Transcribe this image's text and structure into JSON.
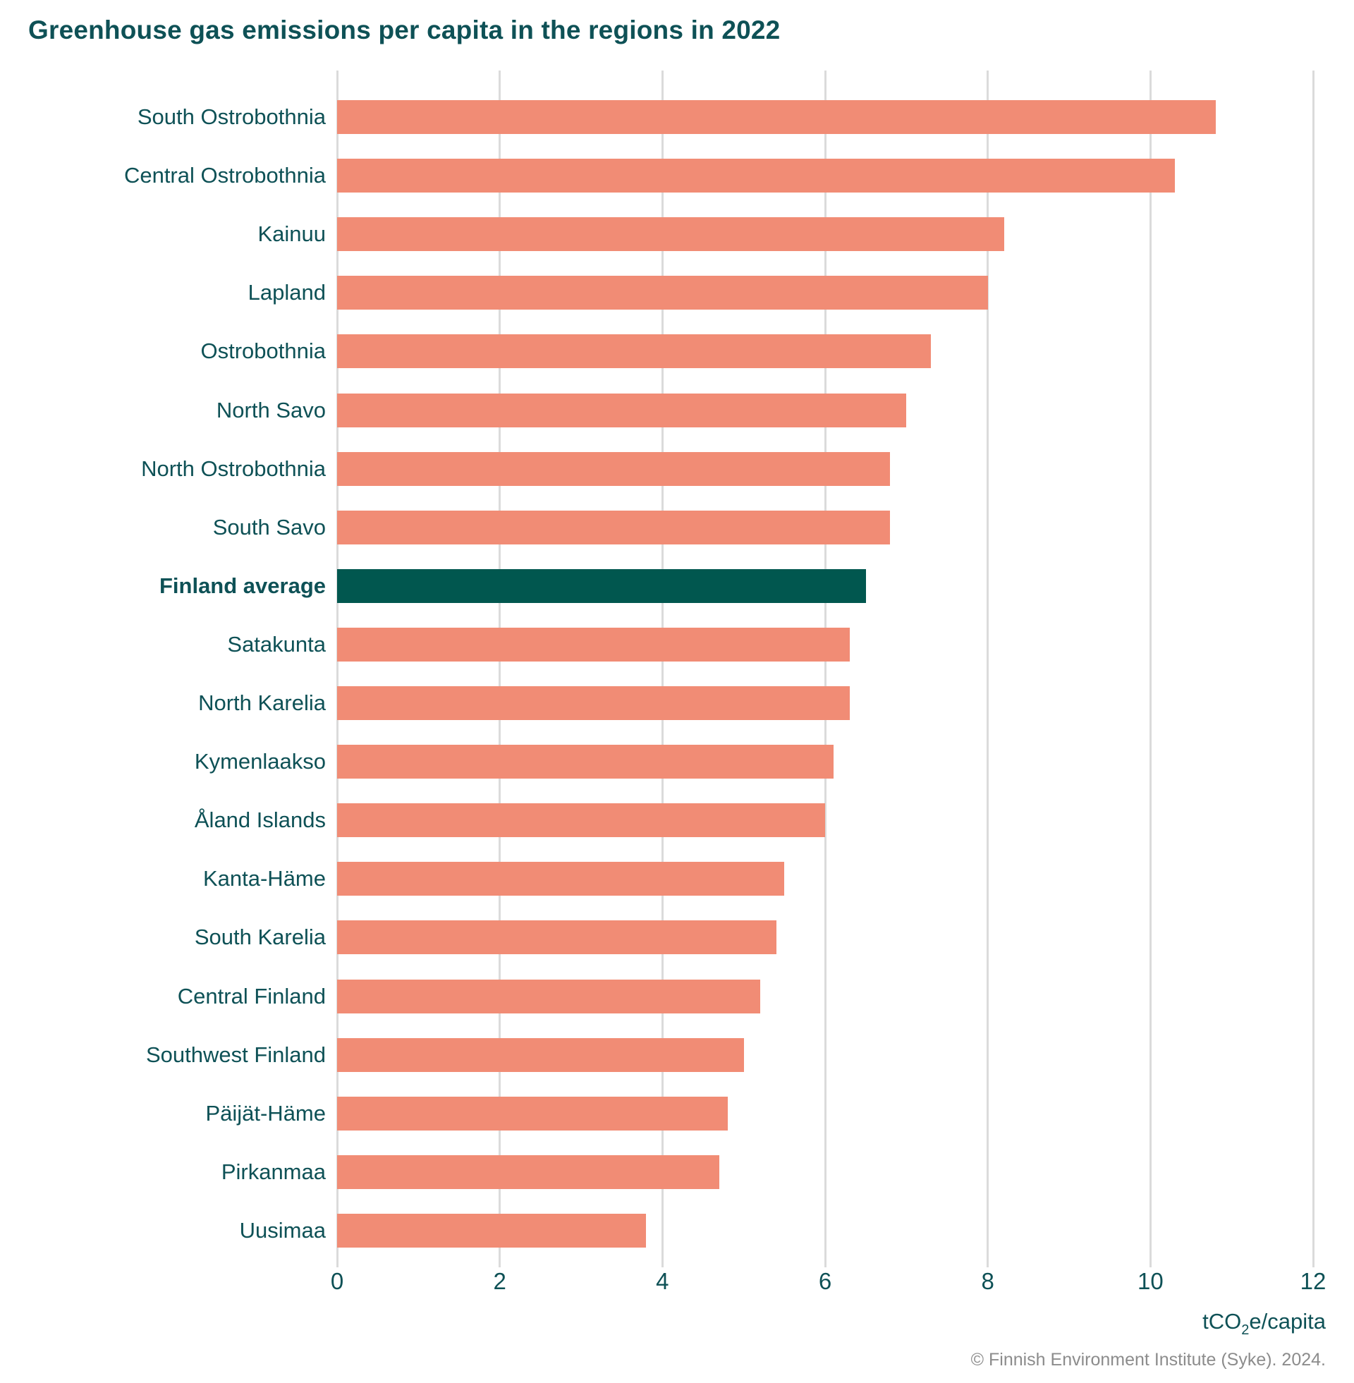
{
  "title": "Greenhouse gas emissions per capita in the regions in 2022",
  "axis": {
    "unit_prefix": "tCO",
    "unit_sub": "2",
    "unit_suffix": "e/capita"
  },
  "footer": "© Finnish Environment Institute (Syke). 2024.",
  "colors": {
    "bar": "#F18C75",
    "highlight": "#01574F",
    "text": "#0E5156",
    "grid": "#DBDBDB",
    "muted": "#8C8C8C"
  },
  "chart_data": {
    "type": "bar",
    "orientation": "horizontal",
    "title": "Greenhouse gas emissions per capita in the regions in 2022",
    "xlabel": "tCO2e/capita",
    "ylabel": "",
    "xlim": [
      0,
      12
    ],
    "xticks": [
      0,
      2,
      4,
      6,
      8,
      10,
      12
    ],
    "grid": true,
    "legend": "none",
    "categories": [
      "South Ostrobothnia",
      "Central Ostrobothnia",
      "Kainuu",
      "Lapland",
      "Ostrobothnia",
      "North Savo",
      "North Ostrobothnia",
      "South Savo",
      "Finland average",
      "Satakunta",
      "North Karelia",
      "Kymenlaakso",
      "Åland Islands",
      "Kanta-Häme",
      "South Karelia",
      "Central Finland",
      "Southwest Finland",
      "Päijät-Häme",
      "Pirkanmaa",
      "Uusimaa"
    ],
    "values": [
      10.8,
      10.3,
      8.2,
      8.0,
      7.3,
      7.0,
      6.8,
      6.8,
      6.5,
      6.3,
      6.3,
      6.1,
      6.0,
      5.5,
      5.4,
      5.2,
      5.0,
      4.8,
      4.7,
      3.8
    ],
    "highlight_category": "Finland average"
  }
}
